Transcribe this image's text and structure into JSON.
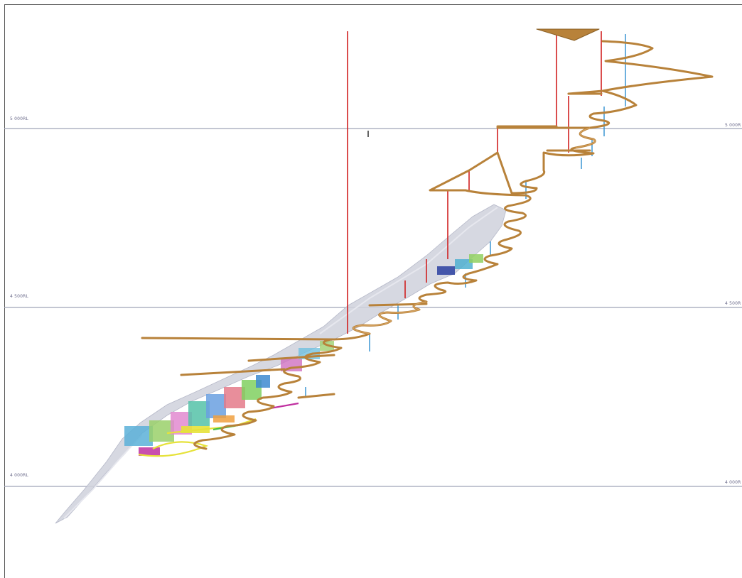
{
  "levels": [
    {
      "label_left": "5 000RL",
      "label_right": "5 000R"
    },
    {
      "label_left": "4 500RL",
      "label_right": "4 500R"
    },
    {
      "label_left": "4 000RL",
      "label_right": "4 000R"
    }
  ],
  "colors": {
    "decline": "#b8823a",
    "decline_light": "#d7a564",
    "drill_red": "#d02020",
    "drill_blue": "#2e8fcf",
    "orebody": "#cfd1dc",
    "level_line": "#9fa3b6",
    "yellow": "#e6e23a",
    "magenta": "#c030a0"
  }
}
